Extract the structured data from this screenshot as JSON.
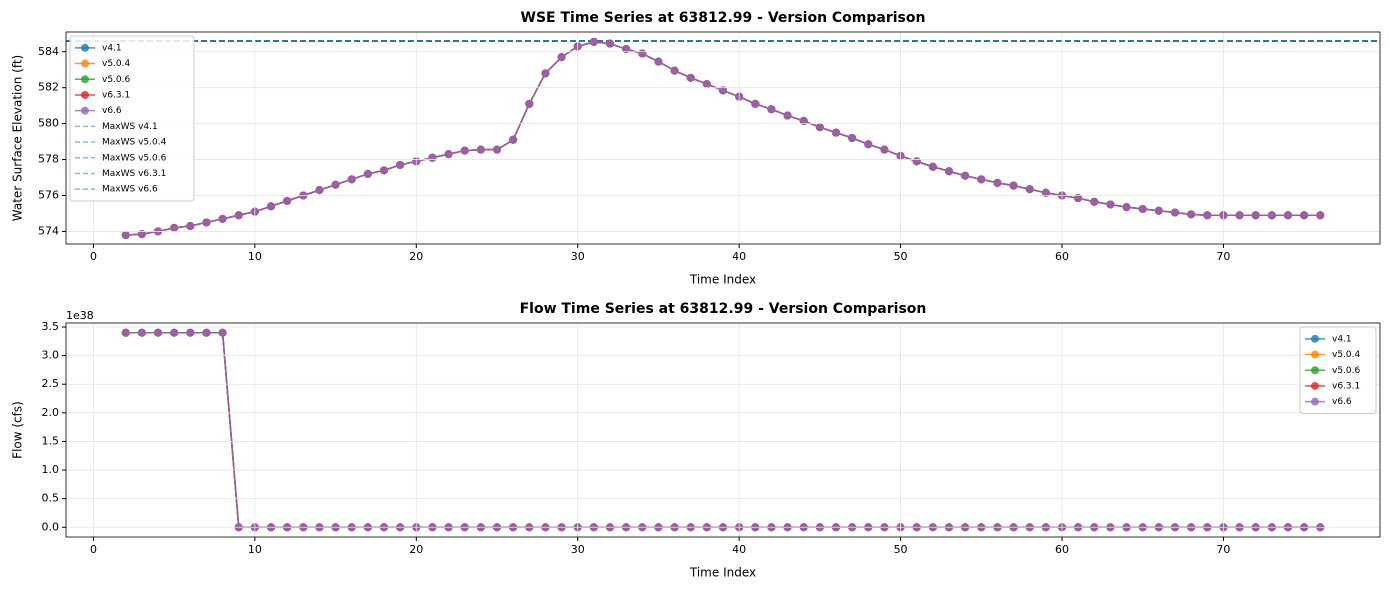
{
  "chart_data": [
    {
      "type": "line",
      "title": "WSE Time Series at 63812.99 - Version Comparison",
      "xlabel": "Time Index",
      "ylabel": "Water Surface Elevation (ft)",
      "x": [
        2,
        3,
        4,
        5,
        6,
        7,
        8,
        9,
        10,
        11,
        12,
        13,
        14,
        15,
        16,
        17,
        18,
        19,
        20,
        21,
        22,
        23,
        24,
        25,
        26,
        27,
        28,
        29,
        30,
        31,
        32,
        33,
        34,
        35,
        36,
        37,
        38,
        39,
        40,
        41,
        42,
        43,
        44,
        45,
        46,
        47,
        48,
        49,
        50,
        51,
        52,
        53,
        54,
        55,
        56,
        57,
        58,
        59,
        60,
        61,
        62,
        63,
        64,
        65,
        66,
        67,
        68,
        69,
        70,
        71,
        72,
        73,
        74,
        75,
        76
      ],
      "series": [
        {
          "name": "v4.1",
          "color": "#1f77b4",
          "values": [
            573.8,
            573.85,
            574.0,
            574.2,
            574.3,
            574.5,
            574.7,
            574.9,
            575.1,
            575.4,
            575.7,
            576.0,
            576.3,
            576.6,
            576.9,
            577.2,
            577.4,
            577.7,
            577.9,
            578.1,
            578.3,
            578.5,
            578.55,
            578.55,
            579.1,
            581.1,
            582.8,
            583.7,
            584.3,
            584.55,
            584.45,
            584.15,
            583.9,
            583.45,
            582.95,
            582.55,
            582.2,
            581.85,
            581.5,
            581.1,
            580.8,
            580.45,
            580.15,
            579.8,
            579.5,
            579.2,
            578.85,
            578.55,
            578.2,
            577.9,
            577.6,
            577.35,
            577.1,
            576.9,
            576.7,
            576.55,
            576.35,
            576.15,
            576.0,
            575.85,
            575.65,
            575.5,
            575.35,
            575.25,
            575.15,
            575.05,
            574.95,
            574.9,
            574.9,
            574.9,
            574.9,
            574.9,
            574.9,
            574.9,
            574.9
          ]
        },
        {
          "name": "v5.0.4",
          "color": "#ff7f0e",
          "values": [
            573.8,
            573.85,
            574.0,
            574.2,
            574.3,
            574.5,
            574.7,
            574.9,
            575.1,
            575.4,
            575.7,
            576.0,
            576.3,
            576.6,
            576.9,
            577.2,
            577.4,
            577.7,
            577.9,
            578.1,
            578.3,
            578.5,
            578.55,
            578.55,
            579.1,
            581.1,
            582.8,
            583.7,
            584.3,
            584.55,
            584.45,
            584.15,
            583.9,
            583.45,
            582.95,
            582.55,
            582.2,
            581.85,
            581.5,
            581.1,
            580.8,
            580.45,
            580.15,
            579.8,
            579.5,
            579.2,
            578.85,
            578.55,
            578.2,
            577.9,
            577.6,
            577.35,
            577.1,
            576.9,
            576.7,
            576.55,
            576.35,
            576.15,
            576.0,
            575.85,
            575.65,
            575.5,
            575.35,
            575.25,
            575.15,
            575.05,
            574.95,
            574.9,
            574.9,
            574.9,
            574.9,
            574.9,
            574.9,
            574.9,
            574.9
          ]
        },
        {
          "name": "v5.0.6",
          "color": "#2ca02c",
          "values": [
            573.8,
            573.85,
            574.0,
            574.2,
            574.3,
            574.5,
            574.7,
            574.9,
            575.1,
            575.4,
            575.7,
            576.0,
            576.3,
            576.6,
            576.9,
            577.2,
            577.4,
            577.7,
            577.9,
            578.1,
            578.3,
            578.5,
            578.55,
            578.55,
            579.1,
            581.1,
            582.8,
            583.7,
            584.3,
            584.55,
            584.45,
            584.15,
            583.9,
            583.45,
            582.95,
            582.55,
            582.2,
            581.85,
            581.5,
            581.1,
            580.8,
            580.45,
            580.15,
            579.8,
            579.5,
            579.2,
            578.85,
            578.55,
            578.2,
            577.9,
            577.6,
            577.35,
            577.1,
            576.9,
            576.7,
            576.55,
            576.35,
            576.15,
            576.0,
            575.85,
            575.65,
            575.5,
            575.35,
            575.25,
            575.15,
            575.05,
            574.95,
            574.9,
            574.9,
            574.9,
            574.9,
            574.9,
            574.9,
            574.9,
            574.9
          ]
        },
        {
          "name": "v6.3.1",
          "color": "#d62728",
          "values": [
            573.8,
            573.85,
            574.0,
            574.2,
            574.3,
            574.5,
            574.7,
            574.9,
            575.1,
            575.4,
            575.7,
            576.0,
            576.3,
            576.6,
            576.9,
            577.2,
            577.4,
            577.7,
            577.9,
            578.1,
            578.3,
            578.5,
            578.55,
            578.55,
            579.1,
            581.1,
            582.8,
            583.7,
            584.3,
            584.55,
            584.45,
            584.15,
            583.9,
            583.45,
            582.95,
            582.55,
            582.2,
            581.85,
            581.5,
            581.1,
            580.8,
            580.45,
            580.15,
            579.8,
            579.5,
            579.2,
            578.85,
            578.55,
            578.2,
            577.9,
            577.6,
            577.35,
            577.1,
            576.9,
            576.7,
            576.55,
            576.35,
            576.15,
            576.0,
            575.85,
            575.65,
            575.5,
            575.35,
            575.25,
            575.15,
            575.05,
            574.95,
            574.9,
            574.9,
            574.9,
            574.9,
            574.9,
            574.9,
            574.9,
            574.9
          ]
        },
        {
          "name": "v6.6",
          "color": "#9467bd",
          "values": [
            573.8,
            573.85,
            574.0,
            574.2,
            574.3,
            574.5,
            574.7,
            574.9,
            575.1,
            575.4,
            575.7,
            576.0,
            576.3,
            576.6,
            576.9,
            577.2,
            577.4,
            577.7,
            577.9,
            578.1,
            578.3,
            578.5,
            578.55,
            578.55,
            579.1,
            581.1,
            582.8,
            583.7,
            584.3,
            584.55,
            584.45,
            584.15,
            583.9,
            583.45,
            582.95,
            582.55,
            582.2,
            581.85,
            581.5,
            581.1,
            580.8,
            580.45,
            580.15,
            579.8,
            579.5,
            579.2,
            578.85,
            578.55,
            578.2,
            577.9,
            577.6,
            577.35,
            577.1,
            576.9,
            576.7,
            576.55,
            576.35,
            576.15,
            576.0,
            575.85,
            575.65,
            575.5,
            575.35,
            575.25,
            575.15,
            575.05,
            574.95,
            574.9,
            574.9,
            574.9,
            574.9,
            574.9,
            574.9,
            574.9,
            574.9
          ]
        }
      ],
      "hlines": [
        {
          "name": "MaxWS v4.1",
          "value": 584.6,
          "color": "#1f77b4"
        },
        {
          "name": "MaxWS v5.0.4",
          "value": 584.6,
          "color": "#1f77b4"
        },
        {
          "name": "MaxWS v5.0.6",
          "value": 584.6,
          "color": "#1f77b4"
        },
        {
          "name": "MaxWS v6.3.1",
          "value": 584.6,
          "color": "#1f77b4"
        },
        {
          "name": "MaxWS v6.6",
          "value": 584.6,
          "color": "#1f77b4"
        }
      ],
      "xlim": [
        -1.7,
        79.7
      ],
      "xticks": [
        0,
        10,
        20,
        30,
        40,
        50,
        60,
        70
      ],
      "ylim": [
        573.3,
        585.1
      ],
      "yticks": [
        574,
        576,
        578,
        580,
        582,
        584
      ],
      "grid": true,
      "legend": "upper left"
    },
    {
      "type": "line",
      "title": "Flow Time Series at 63812.99 - Version Comparison",
      "xlabel": "Time Index",
      "ylabel": "Flow (cfs)",
      "y_offset_label": "1e38",
      "x": [
        2,
        3,
        4,
        5,
        6,
        7,
        8,
        9,
        10,
        11,
        12,
        13,
        14,
        15,
        16,
        17,
        18,
        19,
        20,
        21,
        22,
        23,
        24,
        25,
        26,
        27,
        28,
        29,
        30,
        31,
        32,
        33,
        34,
        35,
        36,
        37,
        38,
        39,
        40,
        41,
        42,
        43,
        44,
        45,
        46,
        47,
        48,
        49,
        50,
        51,
        52,
        53,
        54,
        55,
        56,
        57,
        58,
        59,
        60,
        61,
        62,
        63,
        64,
        65,
        66,
        67,
        68,
        69,
        70,
        71,
        72,
        73,
        74,
        75,
        76
      ],
      "series": [
        {
          "name": "v4.1",
          "color": "#1f77b4",
          "values": [
            3.4,
            3.4,
            3.4,
            3.4,
            3.4,
            3.4,
            3.4,
            0,
            0,
            0,
            0,
            0,
            0,
            0,
            0,
            0,
            0,
            0,
            0,
            0,
            0,
            0,
            0,
            0,
            0,
            0,
            0,
            0,
            0,
            0,
            0,
            0,
            0,
            0,
            0,
            0,
            0,
            0,
            0,
            0,
            0,
            0,
            0,
            0,
            0,
            0,
            0,
            0,
            0,
            0,
            0,
            0,
            0,
            0,
            0,
            0,
            0,
            0,
            0,
            0,
            0,
            0,
            0,
            0,
            0,
            0,
            0,
            0,
            0,
            0,
            0,
            0,
            0,
            0,
            0
          ]
        },
        {
          "name": "v5.0.4",
          "color": "#ff7f0e",
          "values": [
            3.4,
            3.4,
            3.4,
            3.4,
            3.4,
            3.4,
            3.4,
            0,
            0,
            0,
            0,
            0,
            0,
            0,
            0,
            0,
            0,
            0,
            0,
            0,
            0,
            0,
            0,
            0,
            0,
            0,
            0,
            0,
            0,
            0,
            0,
            0,
            0,
            0,
            0,
            0,
            0,
            0,
            0,
            0,
            0,
            0,
            0,
            0,
            0,
            0,
            0,
            0,
            0,
            0,
            0,
            0,
            0,
            0,
            0,
            0,
            0,
            0,
            0,
            0,
            0,
            0,
            0,
            0,
            0,
            0,
            0,
            0,
            0,
            0,
            0,
            0,
            0,
            0,
            0
          ]
        },
        {
          "name": "v5.0.6",
          "color": "#2ca02c",
          "values": [
            3.4,
            3.4,
            3.4,
            3.4,
            3.4,
            3.4,
            3.4,
            0,
            0,
            0,
            0,
            0,
            0,
            0,
            0,
            0,
            0,
            0,
            0,
            0,
            0,
            0,
            0,
            0,
            0,
            0,
            0,
            0,
            0,
            0,
            0,
            0,
            0,
            0,
            0,
            0,
            0,
            0,
            0,
            0,
            0,
            0,
            0,
            0,
            0,
            0,
            0,
            0,
            0,
            0,
            0,
            0,
            0,
            0,
            0,
            0,
            0,
            0,
            0,
            0,
            0,
            0,
            0,
            0,
            0,
            0,
            0,
            0,
            0,
            0,
            0,
            0,
            0,
            0,
            0
          ]
        },
        {
          "name": "v6.3.1",
          "color": "#d62728",
          "values": [
            3.4,
            3.4,
            3.4,
            3.4,
            3.4,
            3.4,
            3.4,
            0,
            0,
            0,
            0,
            0,
            0,
            0,
            0,
            0,
            0,
            0,
            0,
            0,
            0,
            0,
            0,
            0,
            0,
            0,
            0,
            0,
            0,
            0,
            0,
            0,
            0,
            0,
            0,
            0,
            0,
            0,
            0,
            0,
            0,
            0,
            0,
            0,
            0,
            0,
            0,
            0,
            0,
            0,
            0,
            0,
            0,
            0,
            0,
            0,
            0,
            0,
            0,
            0,
            0,
            0,
            0,
            0,
            0,
            0,
            0,
            0,
            0,
            0,
            0,
            0,
            0,
            0,
            0
          ]
        },
        {
          "name": "v6.6",
          "color": "#9467bd",
          "values": [
            3.4,
            3.4,
            3.4,
            3.4,
            3.4,
            3.4,
            3.4,
            0,
            0,
            0,
            0,
            0,
            0,
            0,
            0,
            0,
            0,
            0,
            0,
            0,
            0,
            0,
            0,
            0,
            0,
            0,
            0,
            0,
            0,
            0,
            0,
            0,
            0,
            0,
            0,
            0,
            0,
            0,
            0,
            0,
            0,
            0,
            0,
            0,
            0,
            0,
            0,
            0,
            0,
            0,
            0,
            0,
            0,
            0,
            0,
            0,
            0,
            0,
            0,
            0,
            0,
            0,
            0,
            0,
            0,
            0,
            0,
            0,
            0,
            0,
            0,
            0,
            0,
            0,
            0
          ]
        }
      ],
      "xlim": [
        -1.7,
        79.7
      ],
      "xticks": [
        0,
        10,
        20,
        30,
        40,
        50,
        60,
        70
      ],
      "ylim": [
        -0.17,
        3.57
      ],
      "yticks": [
        {
          "value": 0,
          "label": "0.0"
        },
        0.5,
        {
          "value": 1,
          "label": "1.0"
        },
        1.5,
        {
          "value": 2,
          "label": "2.0"
        },
        2.5,
        {
          "value": 3,
          "label": "3.0"
        },
        3.5
      ],
      "grid": true,
      "legend": "upper right"
    }
  ]
}
